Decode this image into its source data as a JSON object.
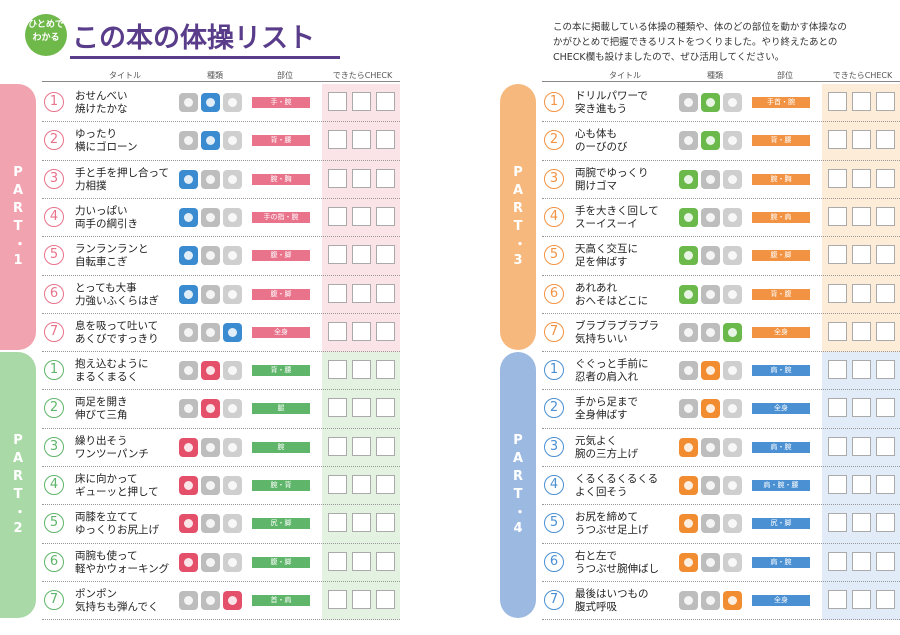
{
  "header": {
    "badge": [
      "ひとめで",
      "わかる"
    ],
    "title": "この本の体操リスト",
    "intro": [
      "この本に掲載している体操の種類や、体のどの部位を動かす体操なの",
      "かがひとめで把握できるリストをつくりました。やり終えたあとの",
      "CHECK欄も設けましたので、ぜひ活用してください。"
    ]
  },
  "pages": [
    {
      "columns": [
        "タイトル",
        "種類",
        "部位",
        "できたらCHECK"
      ],
      "parts": [
        {
          "label": "PART・1",
          "items": [
            {
              "number": "1",
              "title": [
                "おせんべい",
                "焼けたかな"
              ],
              "body": "手・腕"
            },
            {
              "number": "2",
              "title": [
                "ゆったり",
                "横にゴローン"
              ],
              "body": "背・腰"
            },
            {
              "number": "3",
              "title": [
                "手と手を押し合って",
                "力相撲"
              ],
              "body": "腕・胸"
            },
            {
              "number": "4",
              "title": [
                "力いっぱい",
                "両手の綱引き"
              ],
              "body": "手の指・腕"
            },
            {
              "number": "5",
              "title": [
                "ランランランと",
                "自転車こぎ"
              ],
              "body": "腹・脚"
            },
            {
              "number": "6",
              "title": [
                "とっても大事",
                "力強いふくらはぎ"
              ],
              "body": "腹・脚"
            },
            {
              "number": "7",
              "title": [
                "息を吸って吐いて",
                "あくびですっきり"
              ],
              "body": "全身"
            }
          ]
        },
        {
          "label": "PART・2",
          "items": [
            {
              "number": "1",
              "title": [
                "抱え込むように",
                "まるくまるく"
              ],
              "body": "背・腰"
            },
            {
              "number": "2",
              "title": [
                "両足を開き",
                "伸びて三角"
              ],
              "body": "腿"
            },
            {
              "number": "3",
              "title": [
                "繰り出そう",
                "ワンツーパンチ"
              ],
              "body": "腕"
            },
            {
              "number": "4",
              "title": [
                "床に向かって",
                "ギューッと押して"
              ],
              "body": "腕・背"
            },
            {
              "number": "5",
              "title": [
                "両膝を立てて",
                "ゆっくりお尻上げ"
              ],
              "body": "尻・脚"
            },
            {
              "number": "6",
              "title": [
                "両腕も使って",
                "軽やかウォーキング"
              ],
              "body": "腹・脚"
            },
            {
              "number": "7",
              "title": [
                "ポンポン",
                "気持ちも弾んでく"
              ],
              "body": "首・肩"
            }
          ]
        }
      ]
    },
    {
      "columns": [
        "タイトル",
        "種類",
        "部位",
        "できたらCHECK"
      ],
      "parts": [
        {
          "label": "PART・3",
          "items": [
            {
              "number": "1",
              "title": [
                "ドリルパワーで",
                "突き進もう"
              ],
              "body": "手首・腕"
            },
            {
              "number": "2",
              "title": [
                "心も体も",
                "のーびのび"
              ],
              "body": "背・腰"
            },
            {
              "number": "3",
              "title": [
                "両腕でゆっくり",
                "開けゴマ"
              ],
              "body": "腕・胸"
            },
            {
              "number": "4",
              "title": [
                "手を大きく回して",
                "スーイスーイ"
              ],
              "body": "腕・肩"
            },
            {
              "number": "5",
              "title": [
                "天高く交互に",
                "足を伸ばす"
              ],
              "body": "腹・脚"
            },
            {
              "number": "6",
              "title": [
                "あれあれ",
                "おへそはどこに"
              ],
              "body": "背・腹"
            },
            {
              "number": "7",
              "title": [
                "ブラブラブラブラ",
                "気持ちいい"
              ],
              "body": "全身"
            }
          ]
        },
        {
          "label": "PART・4",
          "items": [
            {
              "number": "1",
              "title": [
                "ぐぐっと手前に",
                "忍者の肩入れ"
              ],
              "body": "肩・腕"
            },
            {
              "number": "2",
              "title": [
                "手から足まで",
                "全身伸ばす"
              ],
              "body": "全身"
            },
            {
              "number": "3",
              "title": [
                "元気よく",
                "腕の三方上げ"
              ],
              "body": "肩・腕"
            },
            {
              "number": "4",
              "title": [
                "くるくるくるくる",
                "よく回そう"
              ],
              "body": "肩・腕・腰"
            },
            {
              "number": "5",
              "title": [
                "お尻を締めて",
                "うつぶせ足上げ"
              ],
              "body": "尻・脚"
            },
            {
              "number": "6",
              "title": [
                "右と左で",
                "うつぶせ腕伸ばし"
              ],
              "body": "肩・腕"
            },
            {
              "number": "7",
              "title": [
                "最後はいつもの",
                "腹式呼吸"
              ],
              "body": "全身"
            }
          ]
        }
      ]
    }
  ]
}
